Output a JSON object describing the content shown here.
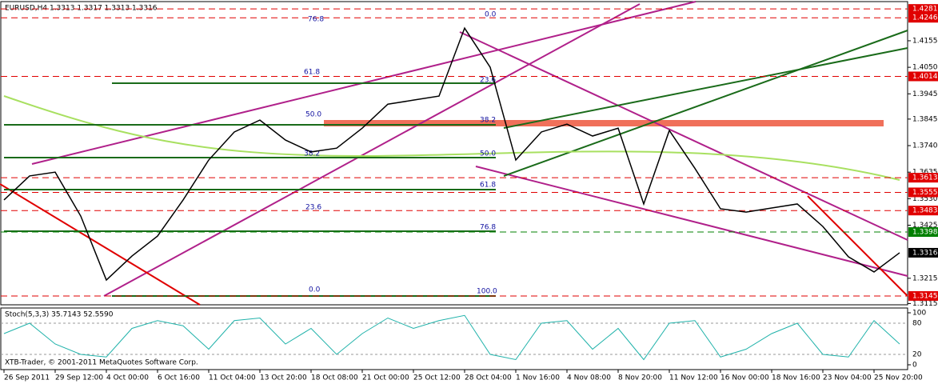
{
  "chart_data": [
    {
      "type": "line",
      "title": "EURUSD,H4  1.3313 1.3317 1.3313 1.3316",
      "watermark": "XTB-Trader, © 2001-2011 MetaQuotes Software Corp.",
      "categories": [
        "26 Sep 2011",
        null,
        "29 Sep 12:00",
        null,
        "4 Oct 00:00",
        null,
        "6 Oct 16:00",
        null,
        "11 Oct 04:00",
        null,
        "13 Oct 20:00",
        null,
        "18 Oct 08:00",
        null,
        "21 Oct 00:00",
        null,
        "25 Oct 12:00",
        null,
        "28 Oct 04:00",
        null,
        "1 Nov 16:00",
        null,
        "4 Nov 08:00",
        null,
        "8 Nov 20:00",
        null,
        "11 Nov 12:00",
        null,
        "16 Nov 00:00",
        null,
        "18 Nov 16:00",
        null,
        "23 Nov 04:00",
        null,
        "25 Nov 20:00",
        null
      ],
      "series": [
        {
          "name": "EURUSD",
          "color": "#ffffff",
          "values": [
            1.3525,
            1.362,
            1.3635,
            1.3461,
            1.3208,
            1.3303,
            1.3382,
            1.3525,
            1.3683,
            1.3794,
            1.3841,
            1.3762,
            1.3715,
            1.373,
            1.3809,
            1.3904,
            1.392,
            1.3936,
            1.4205,
            1.405,
            1.3683,
            1.3794,
            1.3825,
            1.3778,
            1.3809,
            1.3509,
            1.38,
            1.365,
            1.349,
            1.3477,
            1.3493,
            1.3509,
            1.342,
            1.33,
            1.324,
            1.3316
          ]
        }
      ],
      "ylim": [
        1.311,
        1.431
      ],
      "yticks": [
        1.4155,
        {
          "value": 1.405,
          "label": "1.4050"
        },
        1.3945,
        1.3845,
        {
          "value": 1.374,
          "label": "1.3740"
        },
        1.3635,
        {
          "value": 1.353,
          "label": "1.3530"
        },
        1.3425,
        1.3215,
        1.3115
      ],
      "levels": [
        {
          "value": 1.4281,
          "color": "#e00000"
        },
        {
          "value": 1.4246,
          "color": "#e00000"
        },
        {
          "value": 1.4014,
          "color": "#e00000"
        },
        {
          "value": 1.3613,
          "color": "#e00000"
        },
        {
          "value": 1.3555,
          "color": "#e00000"
        },
        {
          "value": 1.3483,
          "color": "#e00000"
        },
        {
          "value": 1.3398,
          "color": "#008000"
        },
        {
          "value": 1.3316,
          "color": "#000000"
        },
        {
          "value": 1.3145,
          "color": "#e00000"
        }
      ],
      "fib_labels": [
        "76.8",
        "0.0",
        "61.8",
        "23.6",
        "50.0",
        "38.2",
        "38.2",
        "50.0",
        "61.8",
        "23.6",
        "76.8",
        "0.0",
        "100.0"
      ]
    },
    {
      "type": "line",
      "title": "Stoch(5,3,3) 35.7143 52.5590",
      "series": [
        {
          "name": "Stoch",
          "color": "#20b2aa",
          "values": [
            60,
            80,
            40,
            20,
            15,
            70,
            85,
            75,
            30,
            85,
            90,
            40,
            70,
            20,
            60,
            90,
            70,
            85,
            95,
            20,
            10,
            80,
            85,
            30,
            70,
            10,
            80,
            85,
            15,
            30,
            60,
            80,
            20,
            15,
            85,
            40
          ]
        }
      ],
      "ylim": [
        0,
        100
      ],
      "yticks": [
        100,
        80,
        20,
        0
      ]
    }
  ]
}
